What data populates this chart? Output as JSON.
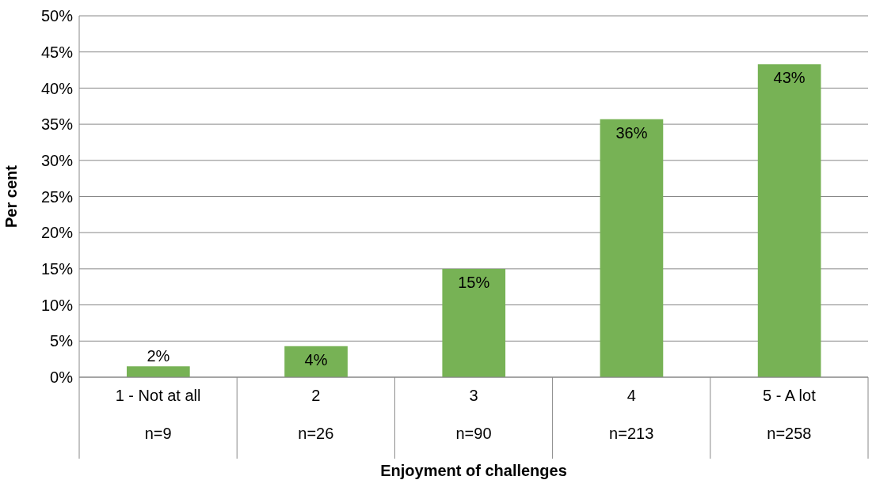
{
  "chart_data": {
    "type": "bar",
    "xlabel": "Enjoyment of challenges",
    "ylabel": "Per cent",
    "categories": [
      "1 - Not at all",
      "2",
      "3",
      "4",
      "5 - A lot"
    ],
    "values": [
      1.5,
      4.3,
      15,
      35.7,
      43.3
    ],
    "value_labels": [
      "2%",
      "4%",
      "15%",
      "36%",
      "43%"
    ],
    "color": "#77b255",
    "ylim": [
      0,
      50
    ],
    "yticks": [
      {
        "value": 0,
        "label": "0%"
      },
      {
        "value": 5,
        "label": "5%"
      },
      {
        "value": 10,
        "label": "10%"
      },
      {
        "value": 15,
        "label": "15%"
      },
      {
        "value": 20,
        "label": "20%"
      },
      {
        "value": 25,
        "label": "25%"
      },
      {
        "value": 30,
        "label": "30%"
      },
      {
        "value": 35,
        "label": "35%"
      },
      {
        "value": 40,
        "label": "40%"
      },
      {
        "value": 45,
        "label": "45%"
      },
      {
        "value": 50,
        "label": "50%"
      }
    ],
    "grid": "y",
    "annotations": [
      "n=9",
      "n=26",
      "n=90",
      "n=213",
      "n=258"
    ]
  }
}
